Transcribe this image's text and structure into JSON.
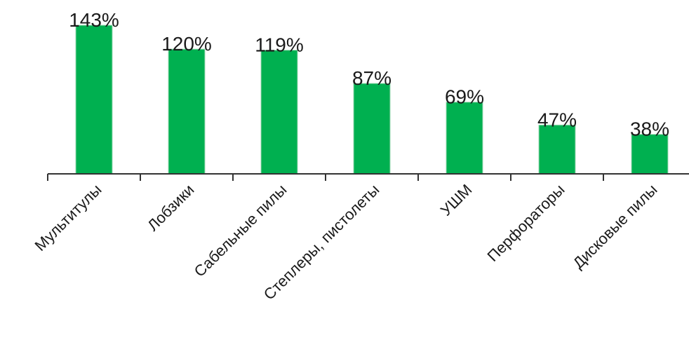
{
  "chart_data": {
    "type": "bar",
    "title": "",
    "xlabel": "",
    "ylabel": "",
    "categories": [
      "Мультитулы",
      "Лобзики",
      "Сабельные пилы",
      "Степлеры, пистолеты",
      "УШМ",
      "Перфораторы",
      "Дисковые пилы"
    ],
    "values": [
      143,
      120,
      119,
      87,
      69,
      47,
      38
    ],
    "value_labels": [
      "143%",
      "120%",
      "119%",
      "87%",
      "69%",
      "47%",
      "38%"
    ],
    "value_unit": "%",
    "ylim": [
      0,
      143
    ],
    "grid": false,
    "legend": "none",
    "bar_color": "#00b050",
    "axis_color": "#333333"
  }
}
